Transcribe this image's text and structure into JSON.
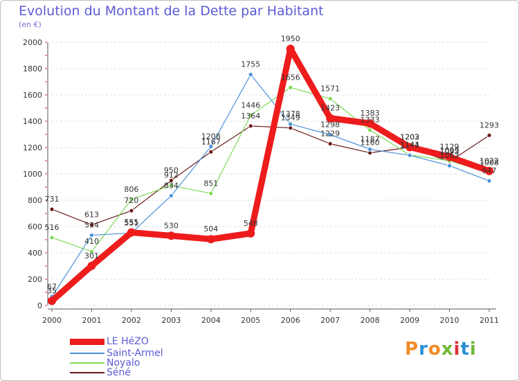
{
  "header": {
    "title": "Evolution du Montant de la Dette par Habitant",
    "unit": "(en €)"
  },
  "brand": {
    "text": "Proxiti",
    "colors": [
      "#f28c28",
      "#2b8fd6",
      "#f28c28",
      "#6fb83a",
      "#e0313b",
      "#2b8fd6",
      "#6fb83a"
    ]
  },
  "chart_data": {
    "type": "line",
    "title": "Evolution du Montant de la Dette par Habitant",
    "ylabel": "(en €)",
    "xlabel": "",
    "x": [
      "2000",
      "2001",
      "2002",
      "2003",
      "2004",
      "2005",
      "2006",
      "2007",
      "2008",
      "2009",
      "2010",
      "2011"
    ],
    "ylim": [
      0,
      2000
    ],
    "yticks": [
      "0",
      "200",
      "400",
      "600",
      "800",
      "1000",
      "1200",
      "1400",
      "1600",
      "1800",
      "2000"
    ],
    "grid": "horizontal dashed",
    "legend_position": "bottom-left",
    "series": [
      {
        "name": "Séné",
        "color": "#6b1a1a",
        "values": [
          731,
          613,
          720,
          950,
          1167,
          1364,
          1349,
          1229,
          1160,
          1202,
          1093,
          1293
        ],
        "labels": [
          "731",
          "613",
          "720",
          "950",
          "1167",
          "1364",
          "1349",
          "1229",
          "1160",
          "1202",
          "1093",
          "1293"
        ]
      },
      {
        "name": "Noyalo",
        "color": "#7ed957",
        "values": [
          516,
          410,
          806,
          912,
          851,
          1446,
          1656,
          1571,
          1333,
          1144,
          1099,
          1008
        ],
        "labels": [
          "516",
          "410",
          "806",
          "912",
          "851",
          "1446",
          "1656",
          "1571",
          "1333",
          "1144",
          "1099",
          "1008"
        ]
      },
      {
        "name": "Saint-Armel",
        "color": "#4a90d9",
        "values": [
          67,
          534,
          551,
          834,
          1208,
          1755,
          1378,
          1298,
          1187,
          1141,
          1062,
          947
        ],
        "labels": [
          "67",
          "534",
          "551",
          "834",
          "1208",
          "1755",
          "1378",
          "1298",
          "1187",
          "1141",
          "1062",
          "947"
        ]
      },
      {
        "name": "LE HéZO",
        "color": "#ee1c1c",
        "values": [
          35,
          301,
          555,
          530,
          504,
          548,
          1950,
          1423,
          1383,
          1203,
          1129,
          1022
        ],
        "labels": [
          "35",
          "301",
          "555",
          "530",
          "504",
          "548",
          "1950",
          "1423",
          "1383",
          "1203",
          "1129",
          "1022"
        ]
      }
    ],
    "legend": [
      "LE HéZO",
      "Saint-Armel",
      "Noyalo",
      "Séné"
    ]
  }
}
